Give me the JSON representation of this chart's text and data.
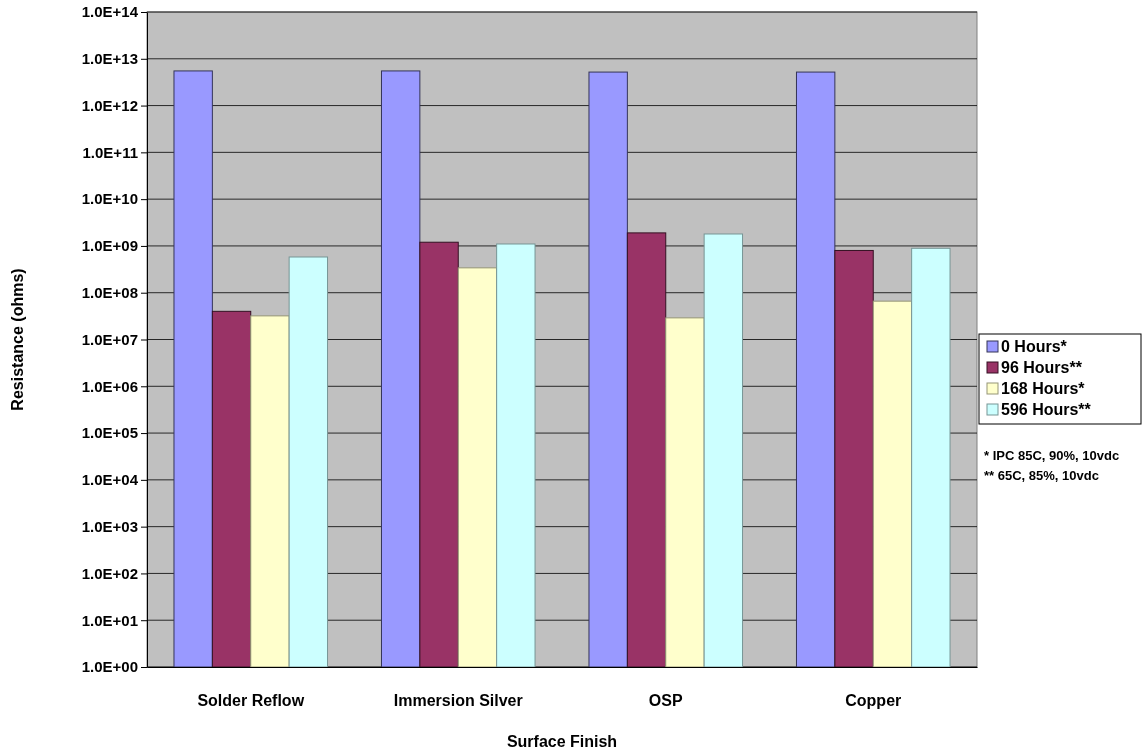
{
  "chart_data": {
    "type": "bar",
    "xlabel": "Surface Finish",
    "ylabel": "Resistance (ohms)",
    "categories": [
      "Solder Reflow",
      "Immersion Silver",
      "OSP",
      "Copper"
    ],
    "series": [
      {
        "name": "0 Hours*",
        "color": "#9999ff",
        "values": [
          5500000000000.0,
          5500000000000.0,
          5200000000000.0,
          5200000000000.0
        ]
      },
      {
        "name": "96 Hours**",
        "color": "#993366",
        "values": [
          40000000.0,
          1200000000.0,
          1900000000.0,
          800000000.0
        ]
      },
      {
        "name": "168 Hours*",
        "color": "#ffffcc",
        "values": [
          32000000.0,
          340000000.0,
          29000000.0,
          66000000.0
        ]
      },
      {
        "name": "596 Hours**",
        "color": "#ccffff",
        "values": [
          580000000.0,
          1100000000.0,
          1800000000.0,
          890000000.0
        ]
      }
    ],
    "log": true,
    "ylim": [
      1,
      100000000000000.0
    ],
    "yticks": [
      {
        "value": 1,
        "label": "1.0E+00"
      },
      {
        "value": 10,
        "label": "1.0E+01"
      },
      {
        "value": 100,
        "label": "1.0E+02"
      },
      {
        "value": 1000,
        "label": "1.0E+03"
      },
      {
        "value": 10000.0,
        "label": "1.0E+04"
      },
      {
        "value": 100000.0,
        "label": "1.0E+05"
      },
      {
        "value": 1000000.0,
        "label": "1.0E+06"
      },
      {
        "value": 10000000.0,
        "label": "1.0E+07"
      },
      {
        "value": 100000000.0,
        "label": "1.0E+08"
      },
      {
        "value": 1000000000.0,
        "label": "1.0E+09"
      },
      {
        "value": 10000000000.0,
        "label": "1.0E+10"
      },
      {
        "value": 100000000000.0,
        "label": "1.0E+11"
      },
      {
        "value": 1000000000000.0,
        "label": "1.0E+12"
      },
      {
        "value": 10000000000000.0,
        "label": "1.0E+13"
      },
      {
        "value": 100000000000000.0,
        "label": "1.0E+14"
      }
    ],
    "grid": "y",
    "legend": "right",
    "annotations": [
      "* IPC 85C, 90%, 10vdc",
      "** 65C, 85%, 10vdc"
    ]
  }
}
